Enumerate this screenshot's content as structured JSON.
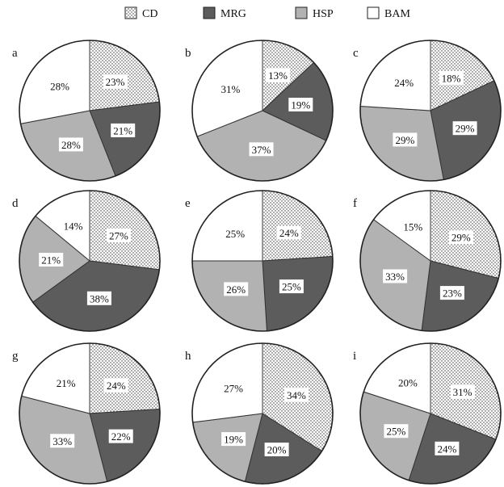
{
  "chart_data": {
    "type": "pie",
    "title": "",
    "legend": {
      "placement": "top",
      "entries": [
        {
          "label": "CD",
          "pattern": "dots"
        },
        {
          "label": "MRG",
          "color": "#5c5c5c"
        },
        {
          "label": "HSP",
          "color": "#b2b2b2"
        },
        {
          "label": "BAM",
          "color": "#ffffff"
        }
      ]
    },
    "series_order": [
      "CD",
      "MRG",
      "HSP",
      "BAM"
    ],
    "panels": [
      {
        "label": "a",
        "values": [
          23,
          21,
          28,
          28
        ],
        "value_labels": [
          "23%",
          "21%",
          "28%",
          "28%"
        ]
      },
      {
        "label": "b",
        "values": [
          13,
          19,
          37,
          31
        ],
        "value_labels": [
          "13%",
          "19%",
          "37%",
          "31%"
        ]
      },
      {
        "label": "c",
        "values": [
          18,
          29,
          29,
          24
        ],
        "value_labels": [
          "18%",
          "29%",
          "29%",
          "24%"
        ]
      },
      {
        "label": "d",
        "values": [
          27,
          38,
          21,
          14
        ],
        "value_labels": [
          "27%",
          "38%",
          "21%",
          "14%"
        ]
      },
      {
        "label": "e",
        "values": [
          24,
          25,
          26,
          25
        ],
        "value_labels": [
          "24%",
          "25%",
          "26%",
          "25%"
        ]
      },
      {
        "label": "f",
        "values": [
          29,
          23,
          33,
          15
        ],
        "value_labels": [
          "29%",
          "23%",
          "33%",
          "15%"
        ]
      },
      {
        "label": "g",
        "values": [
          24,
          22,
          33,
          21
        ],
        "value_labels": [
          "24%",
          "22%",
          "33%",
          "21%"
        ]
      },
      {
        "label": "h",
        "values": [
          34,
          20,
          19,
          27
        ],
        "value_labels": [
          "34%",
          "20%",
          "19%",
          "27%"
        ]
      },
      {
        "label": "i",
        "values": [
          31,
          24,
          25,
          20
        ],
        "value_labels": [
          "31%",
          "24%",
          "25%",
          "20%"
        ]
      }
    ]
  }
}
